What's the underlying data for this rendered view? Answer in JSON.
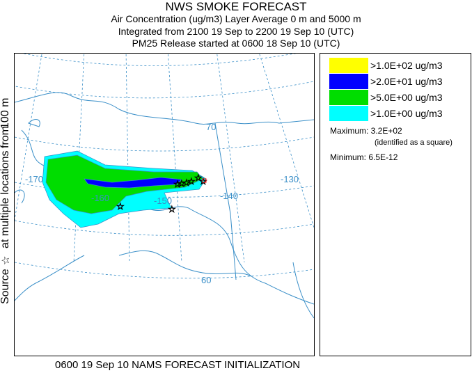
{
  "title": {
    "line1": "NWS SMOKE FORECAST",
    "line2": "Air Concentration (ug/m3) Layer Average    0 m and  5000 m",
    "line3": "Integrated from 2100 19 Sep to 2200 19 Sep 10 (UTC)",
    "line4": "PM25 Release started at 0600 18 Sep 10 (UTC)"
  },
  "side_label": {
    "source": "Source",
    "at_multiple": "at multiple locations",
    "from": "from",
    "height": "100 m"
  },
  "legend": {
    "items": [
      {
        "label": ">1.0E+02 ug/m3",
        "color": "#ffff00"
      },
      {
        "label": ">2.0E+01 ug/m3",
        "color": "#0000ff"
      },
      {
        "label": ">5.0E+00 ug/m3",
        "color": "#00dd00"
      },
      {
        "label": ">1.0E+00 ug/m3",
        "color": "#00ffff"
      }
    ],
    "maximum": "Maximum: 3.2E+02",
    "max_note": "(identified as a square)",
    "minimum": "Minimum: 6.5E-12"
  },
  "map": {
    "graticule_labels": {
      "lat70": "70",
      "lat60": "60",
      "lon170": "-170",
      "lon160": "-160",
      "lon150": "-150",
      "lon140": "-140",
      "lon130": "-130"
    },
    "graticule_color": "#3a8fc8"
  },
  "footer": "0600 19 Sep 10 NAMS FORECAST INITIALIZATION"
}
